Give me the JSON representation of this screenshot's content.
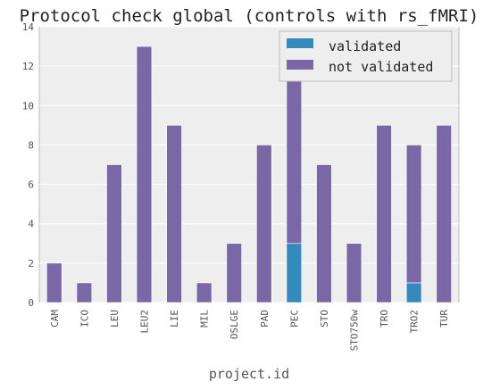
{
  "chart_data": {
    "type": "bar",
    "stacked": true,
    "title": "Protocol check global (controls with rs_fMRI)",
    "xlabel": "project.id",
    "ylabel": "",
    "ylim": [
      0,
      14
    ],
    "yticks": [
      0,
      2,
      4,
      6,
      8,
      10,
      12,
      14
    ],
    "grid": true,
    "legend_position": "top-right",
    "categories": [
      "CAM",
      "ICO",
      "LEU",
      "LEU2",
      "LIE",
      "MIL",
      "OSLGE",
      "PAD",
      "PEC",
      "STO",
      "STO750w",
      "TRO",
      "TRO2",
      "TUR"
    ],
    "series": [
      {
        "name": "validated",
        "color": "#348abd",
        "values": [
          0,
          0,
          0,
          0,
          0,
          0,
          0,
          0,
          3,
          0,
          0,
          0,
          1,
          0
        ]
      },
      {
        "name": "not validated",
        "color": "#7a68a6",
        "values": [
          2,
          1,
          7,
          13,
          9,
          1,
          3,
          8,
          9,
          7,
          3,
          9,
          7,
          9
        ]
      }
    ],
    "colors": {
      "background": "#eeeeee",
      "grid": "#ffffff",
      "axis": "#bcbcbc"
    }
  }
}
